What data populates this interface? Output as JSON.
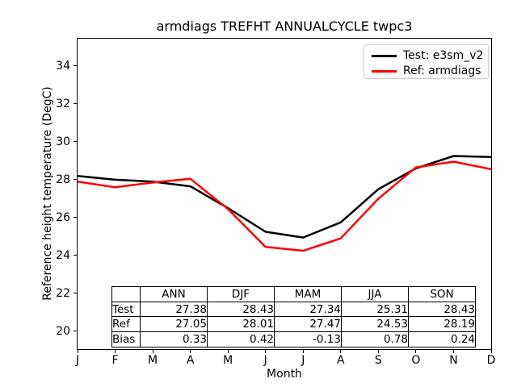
{
  "chart_data": {
    "type": "line",
    "title": "armdiags TREFHT ANNUALCYCLE twpc3",
    "xlabel": "Month",
    "ylabel": "Reference height temperature (DegC)",
    "x_tick_labels": [
      "J",
      "F",
      "M",
      "A",
      "M",
      "J",
      "J",
      "A",
      "S",
      "O",
      "N",
      "D"
    ],
    "y_ticks": [
      20,
      22,
      24,
      26,
      28,
      30,
      32,
      34
    ],
    "ylim": [
      19.06,
      35.44
    ],
    "grid": false,
    "legend_position": "upper right",
    "series": [
      {
        "id": "test",
        "name": "Test: e3sm_v2",
        "color": "#000000",
        "values": [
          28.2,
          28.0,
          27.9,
          27.65,
          26.5,
          25.25,
          24.95,
          25.75,
          27.5,
          28.6,
          29.25,
          29.2
        ]
      },
      {
        "id": "ref",
        "name": "Ref: armdiags",
        "color": "#ff0000",
        "values": [
          27.9,
          27.6,
          27.85,
          28.05,
          26.45,
          24.45,
          24.25,
          24.9,
          27.0,
          28.65,
          28.95,
          28.55
        ]
      }
    ],
    "stats_table": {
      "columns": [
        "ANN",
        "DJF",
        "MAM",
        "JJA",
        "SON"
      ],
      "rows": [
        {
          "label": "Test",
          "values": [
            "27.38",
            "28.43",
            "27.34",
            "25.31",
            "28.43"
          ]
        },
        {
          "label": "Ref",
          "values": [
            "27.05",
            "28.01",
            "27.47",
            "24.53",
            "28.19"
          ]
        },
        {
          "label": "Bias",
          "values": [
            "0.33",
            "0.42",
            "-0.13",
            "0.78",
            "0.24"
          ]
        }
      ]
    }
  }
}
